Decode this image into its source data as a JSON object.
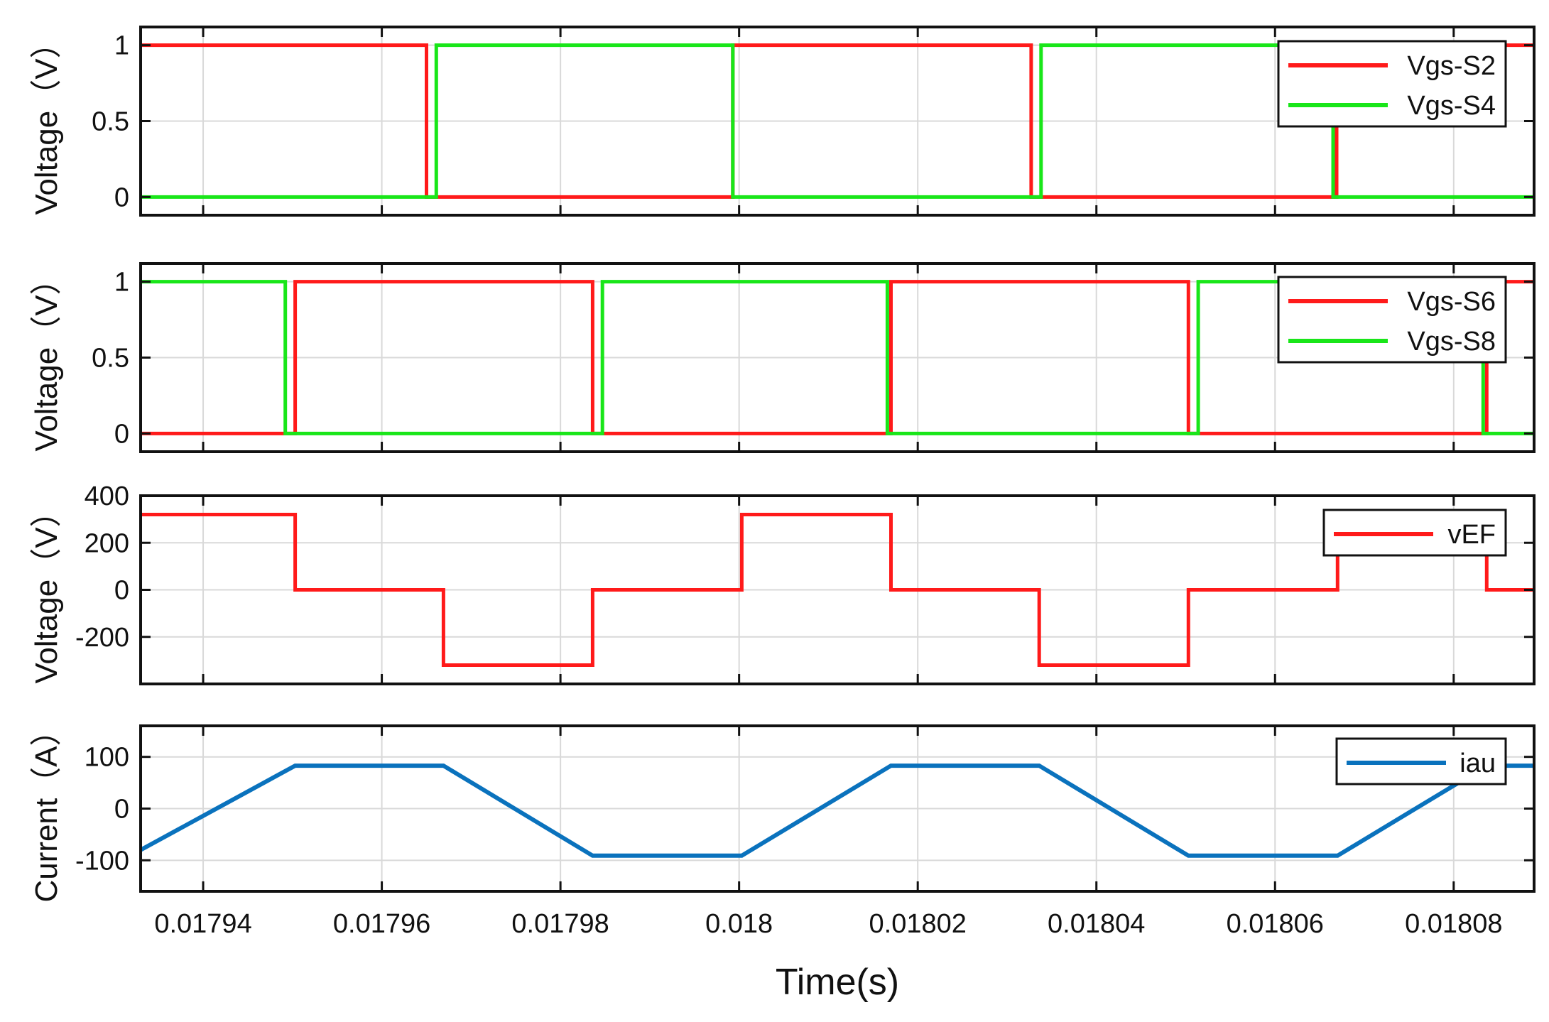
{
  "figure": {
    "xlabel": "Time(s)"
  },
  "colors": {
    "red": "#ff1a1a",
    "green": "#19e619",
    "blue": "#0a72bd",
    "axis": "#111111",
    "grid": "#d9d9d9"
  },
  "chart_data": [
    {
      "type": "line",
      "ylabel": "Voltage（V）",
      "xlim": [
        0.017933,
        0.018089
      ],
      "ylim": [
        -0.12,
        1.12
      ],
      "yticks": [
        0,
        0.5,
        1
      ],
      "yticklabels": [
        "0",
        "0.5",
        "1"
      ],
      "xticks": [
        0.01794,
        0.01796,
        0.01798,
        0.018,
        0.01802,
        0.01804,
        0.01806,
        0.01808
      ],
      "grid": true,
      "legend": "top-right",
      "series": [
        {
          "name": "Vgs-S2",
          "color": "#ff1a1a",
          "x": [
            0.017933,
            0.017965,
            0.017965,
            0.0179993,
            0.0179993,
            0.0180327,
            0.0180327,
            0.0180669,
            0.0180669,
            0.018089
          ],
          "y": [
            1,
            1,
            0,
            0,
            1,
            1,
            0,
            0,
            1,
            1
          ]
        },
        {
          "name": "Vgs-S4",
          "color": "#19e619",
          "x": [
            0.017933,
            0.0179661,
            0.0179661,
            0.0179993,
            0.0179993,
            0.0180338,
            0.0180338,
            0.0180665,
            0.0180665,
            0.018089
          ],
          "y": [
            0,
            0,
            1,
            1,
            0,
            0,
            1,
            1,
            0,
            0
          ]
        }
      ]
    },
    {
      "type": "line",
      "ylabel": "Voltage（V）",
      "xlim": [
        0.017933,
        0.018089
      ],
      "ylim": [
        -0.12,
        1.12
      ],
      "yticks": [
        0,
        0.5,
        1
      ],
      "yticklabels": [
        "0",
        "0.5",
        "1"
      ],
      "xticks": [
        0.01794,
        0.01796,
        0.01798,
        0.018,
        0.01802,
        0.01804,
        0.01806,
        0.01808
      ],
      "grid": true,
      "legend": "top-right",
      "series": [
        {
          "name": "Vgs-S6",
          "color": "#ff1a1a",
          "x": [
            0.017933,
            0.0179503,
            0.0179503,
            0.0179836,
            0.0179836,
            0.018017,
            0.018017,
            0.0180503,
            0.0180503,
            0.0180837,
            0.0180837,
            0.018089
          ],
          "y": [
            0,
            0,
            1,
            1,
            0,
            0,
            1,
            1,
            0,
            0,
            1,
            1
          ]
        },
        {
          "name": "Vgs-S8",
          "color": "#19e619",
          "x": [
            0.017933,
            0.0179492,
            0.0179492,
            0.0179847,
            0.0179847,
            0.0180166,
            0.0180166,
            0.0180514,
            0.0180514,
            0.0180833,
            0.0180833,
            0.018089
          ],
          "y": [
            1,
            1,
            0,
            0,
            1,
            1,
            0,
            0,
            1,
            1,
            0,
            0
          ]
        }
      ]
    },
    {
      "type": "line",
      "ylabel": "Voltage（V）",
      "xlim": [
        0.017933,
        0.018089
      ],
      "ylim": [
        -400,
        400
      ],
      "yticks": [
        -200,
        0,
        200,
        400
      ],
      "yticklabels": [
        "-200",
        "0",
        "200",
        "400"
      ],
      "xticks": [
        0.01794,
        0.01796,
        0.01798,
        0.018,
        0.01802,
        0.01804,
        0.01806,
        0.01808
      ],
      "grid": true,
      "legend": "top-right",
      "series": [
        {
          "name": "vEF",
          "color": "#ff1a1a",
          "x": [
            0.017933,
            0.0179503,
            0.0179503,
            0.0179669,
            0.0179669,
            0.0179836,
            0.0179836,
            0.0180003,
            0.0180003,
            0.018017,
            0.018017,
            0.0180336,
            0.0180336,
            0.0180503,
            0.0180503,
            0.018067,
            0.018067,
            0.0180837,
            0.0180837,
            0.018089
          ],
          "y": [
            320,
            320,
            0,
            0,
            -320,
            -320,
            0,
            0,
            320,
            320,
            0,
            0,
            -320,
            -320,
            0,
            0,
            320,
            320,
            0,
            0
          ]
        }
      ]
    },
    {
      "type": "line",
      "ylabel": "Current（A）",
      "xlim": [
        0.017933,
        0.018089
      ],
      "ylim": [
        -160,
        160
      ],
      "yticks": [
        -100,
        0,
        100
      ],
      "yticklabels": [
        "-100",
        "0",
        "100"
      ],
      "xticks": [
        0.01794,
        0.01796,
        0.01798,
        0.018,
        0.01802,
        0.01804,
        0.01806,
        0.01808
      ],
      "xticklabels": [
        "0.01794",
        "0.01796",
        "0.01798",
        "0.018",
        "0.01802",
        "0.01804",
        "0.01806",
        "0.01808"
      ],
      "grid": true,
      "legend": "top-right",
      "series": [
        {
          "name": "iau",
          "color": "#0a72bd",
          "x": [
            0.017933,
            0.0179503,
            0.0179669,
            0.0179836,
            0.0180003,
            0.018017,
            0.0180336,
            0.0180503,
            0.018067,
            0.0180837,
            0.018089
          ],
          "y": [
            -80,
            83,
            83,
            -91,
            -91,
            83,
            83,
            -91,
            -91,
            83,
            83
          ]
        }
      ]
    }
  ]
}
